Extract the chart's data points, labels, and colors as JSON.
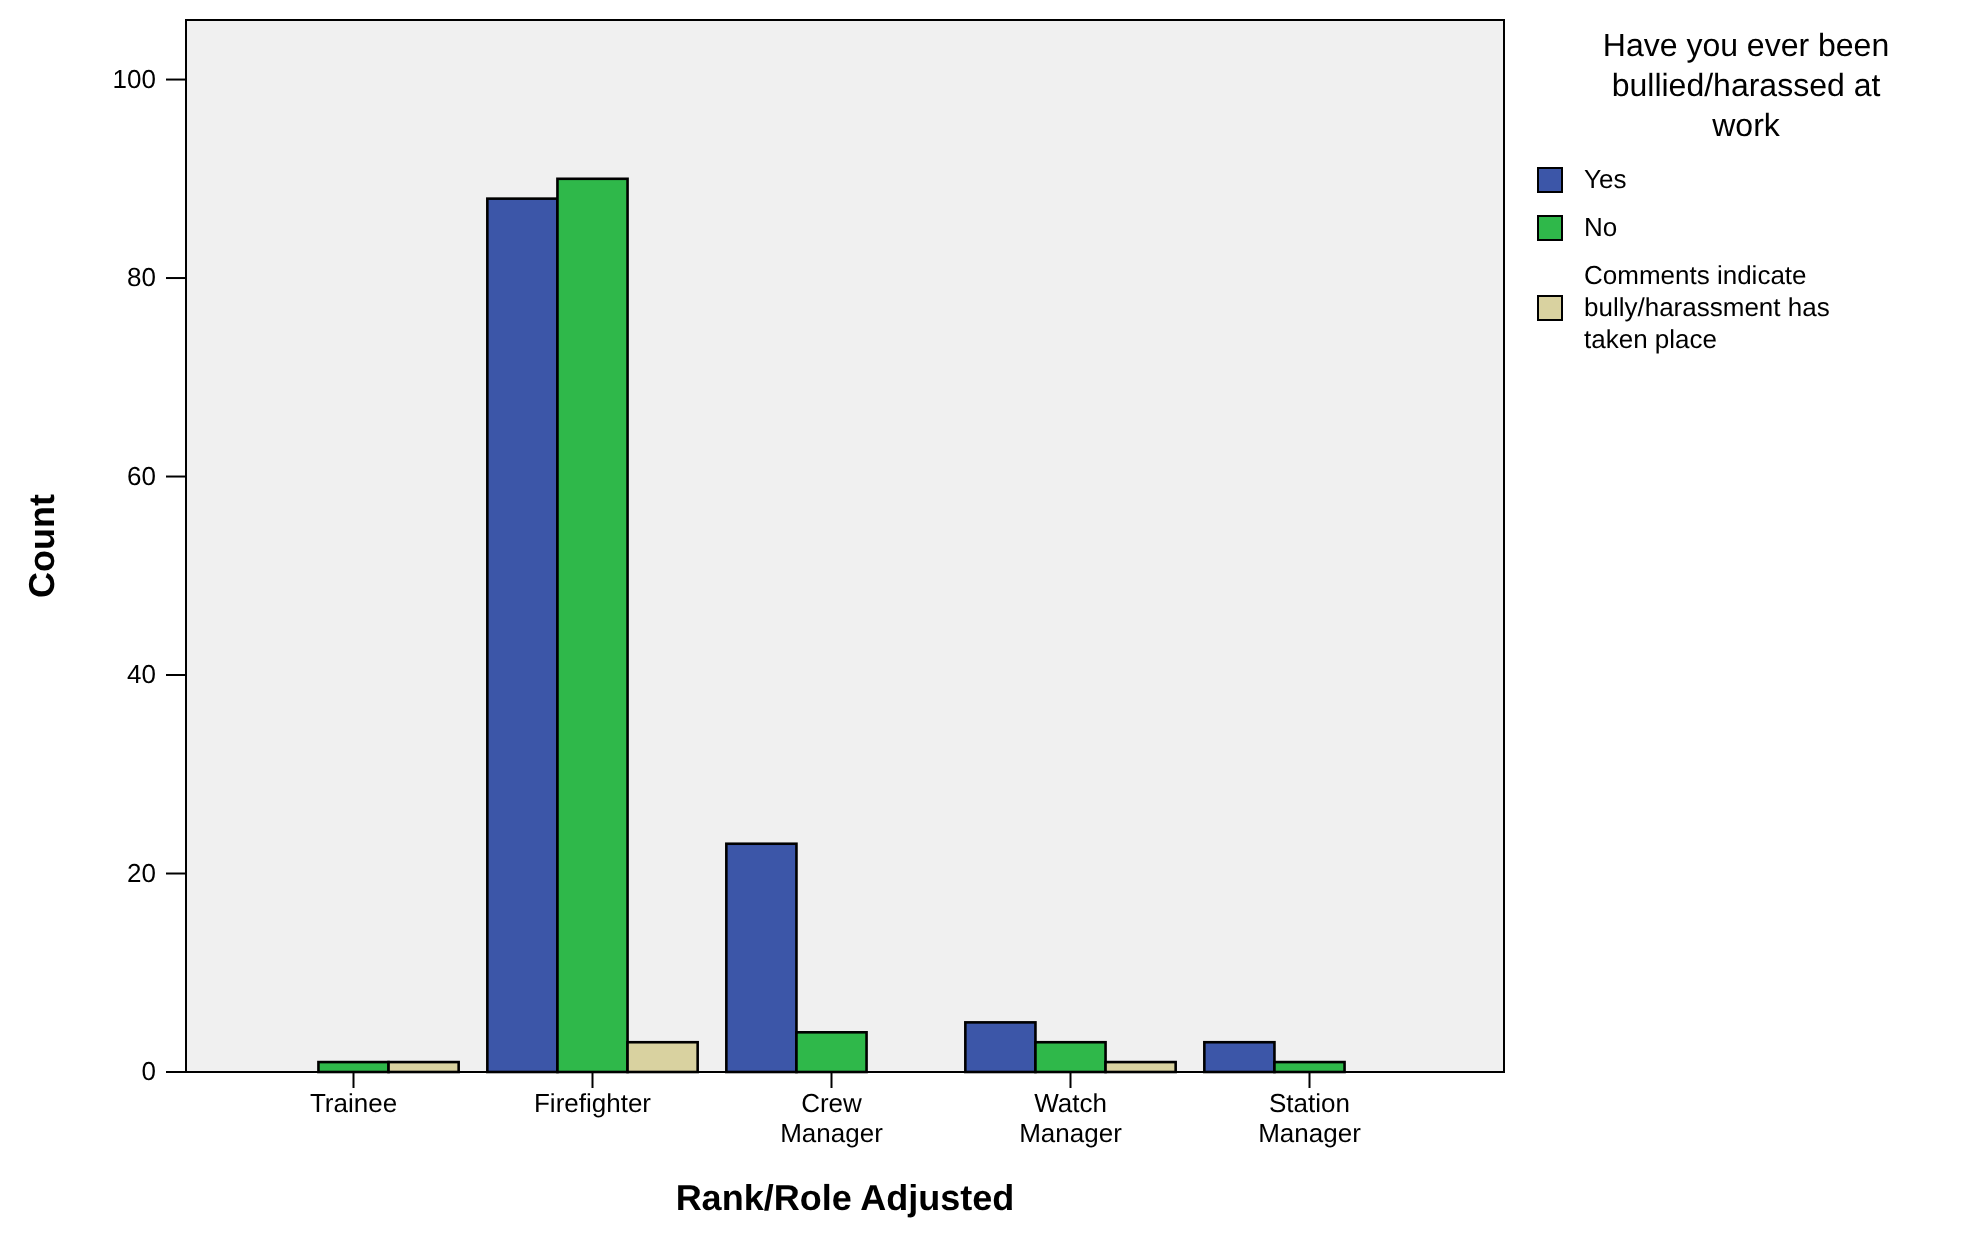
{
  "chart_data": {
    "type": "bar",
    "xlabel": "Rank/Role Adjusted",
    "ylabel": "Count",
    "legend_title": "Have you ever been bullied/harassed at work",
    "categories": [
      "Trainee",
      "Firefighter",
      "Crew Manager",
      "Watch Manager",
      "Station Manager"
    ],
    "series": [
      {
        "name": "Yes",
        "color": "#3c56a8",
        "values": [
          0,
          88,
          23,
          5,
          3
        ]
      },
      {
        "name": "No",
        "color": "#2fb84a",
        "values": [
          1,
          90,
          4,
          3,
          1
        ]
      },
      {
        "name": "Comments indicate bully/harassment has taken place",
        "color": "#d9d2a0",
        "values": [
          1,
          3,
          0,
          1,
          0
        ]
      }
    ],
    "ylim": [
      0,
      106
    ],
    "yticks": [
      0,
      20,
      40,
      60,
      80,
      100
    ],
    "grid": false,
    "legend": "right"
  }
}
